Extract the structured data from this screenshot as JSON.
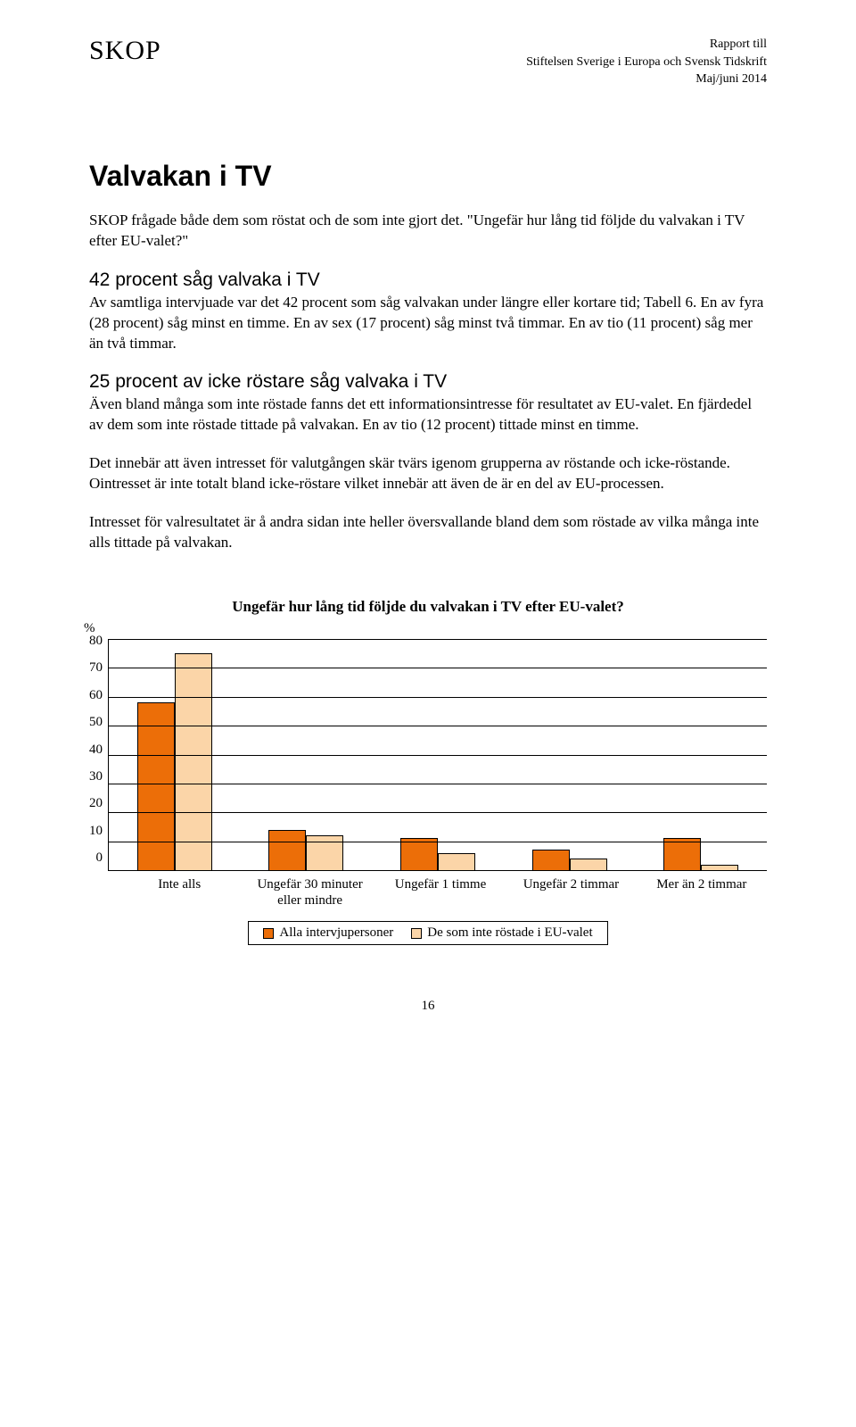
{
  "header": {
    "left": "SKOP",
    "right_line1": "Rapport till",
    "right_line2": "Stiftelsen Sverige i Europa och Svensk Tidskrift",
    "right_line3": "Maj/juni 2014"
  },
  "title_main": "Valvakan i TV",
  "para1": "SKOP frågade både dem som röstat och de som inte gjort det. \"Ungefär hur lång tid följde du valvakan i TV efter EU-valet?\"",
  "subtitle1": "42 procent såg valvaka i TV",
  "para2": "Av samtliga intervjuade var det 42 procent som såg valvakan under längre eller kortare tid; Tabell 6. En av fyra (28 procent) såg minst en timme. En av sex (17 procent) såg minst två timmar. En av tio (11 procent) såg mer än två timmar.",
  "subtitle2": "25 procent av icke röstare såg valvaka i TV",
  "para3": "Även bland många som inte röstade fanns det ett informationsintresse för resultatet av EU-valet. En fjärdedel av dem som inte röstade tittade på valvakan. En av tio (12 procent) tittade minst en timme.",
  "para4": "Det innebär att även intresset för valutgången skär tvärs igenom grupperna av röstande och icke-röstande. Ointresset är inte totalt bland icke-röstare vilket innebär att även de är en del av EU-processen.",
  "para5": "Intresset för valresultatet är å andra sidan inte heller översvallande bland dem som röstade av vilka många inte alls tittade på valvakan.",
  "chart": {
    "title": "Ungefär hur lång tid följde du valvakan i TV efter EU-valet?",
    "y_label": "%",
    "y_ticks": [
      "80",
      "70",
      "60",
      "50",
      "40",
      "30",
      "20",
      "10",
      "0"
    ],
    "ymax": 80,
    "categories": [
      "Inte alls",
      "Ungefär 30 minuter eller mindre",
      "Ungefär 1 timme",
      "Ungefär 2 timmar",
      "Mer än 2 timmar"
    ],
    "series": [
      {
        "label": "Alla intervjupersoner",
        "color": "#ec6e08",
        "values": [
          58,
          14,
          11,
          7,
          11
        ]
      },
      {
        "label": "De som inte röstade i EU-valet",
        "color": "#fbd5a8",
        "values": [
          75,
          12,
          6,
          4,
          2
        ]
      }
    ],
    "grid_color": "#000000",
    "background": "#ffffff"
  },
  "page_number": "16"
}
